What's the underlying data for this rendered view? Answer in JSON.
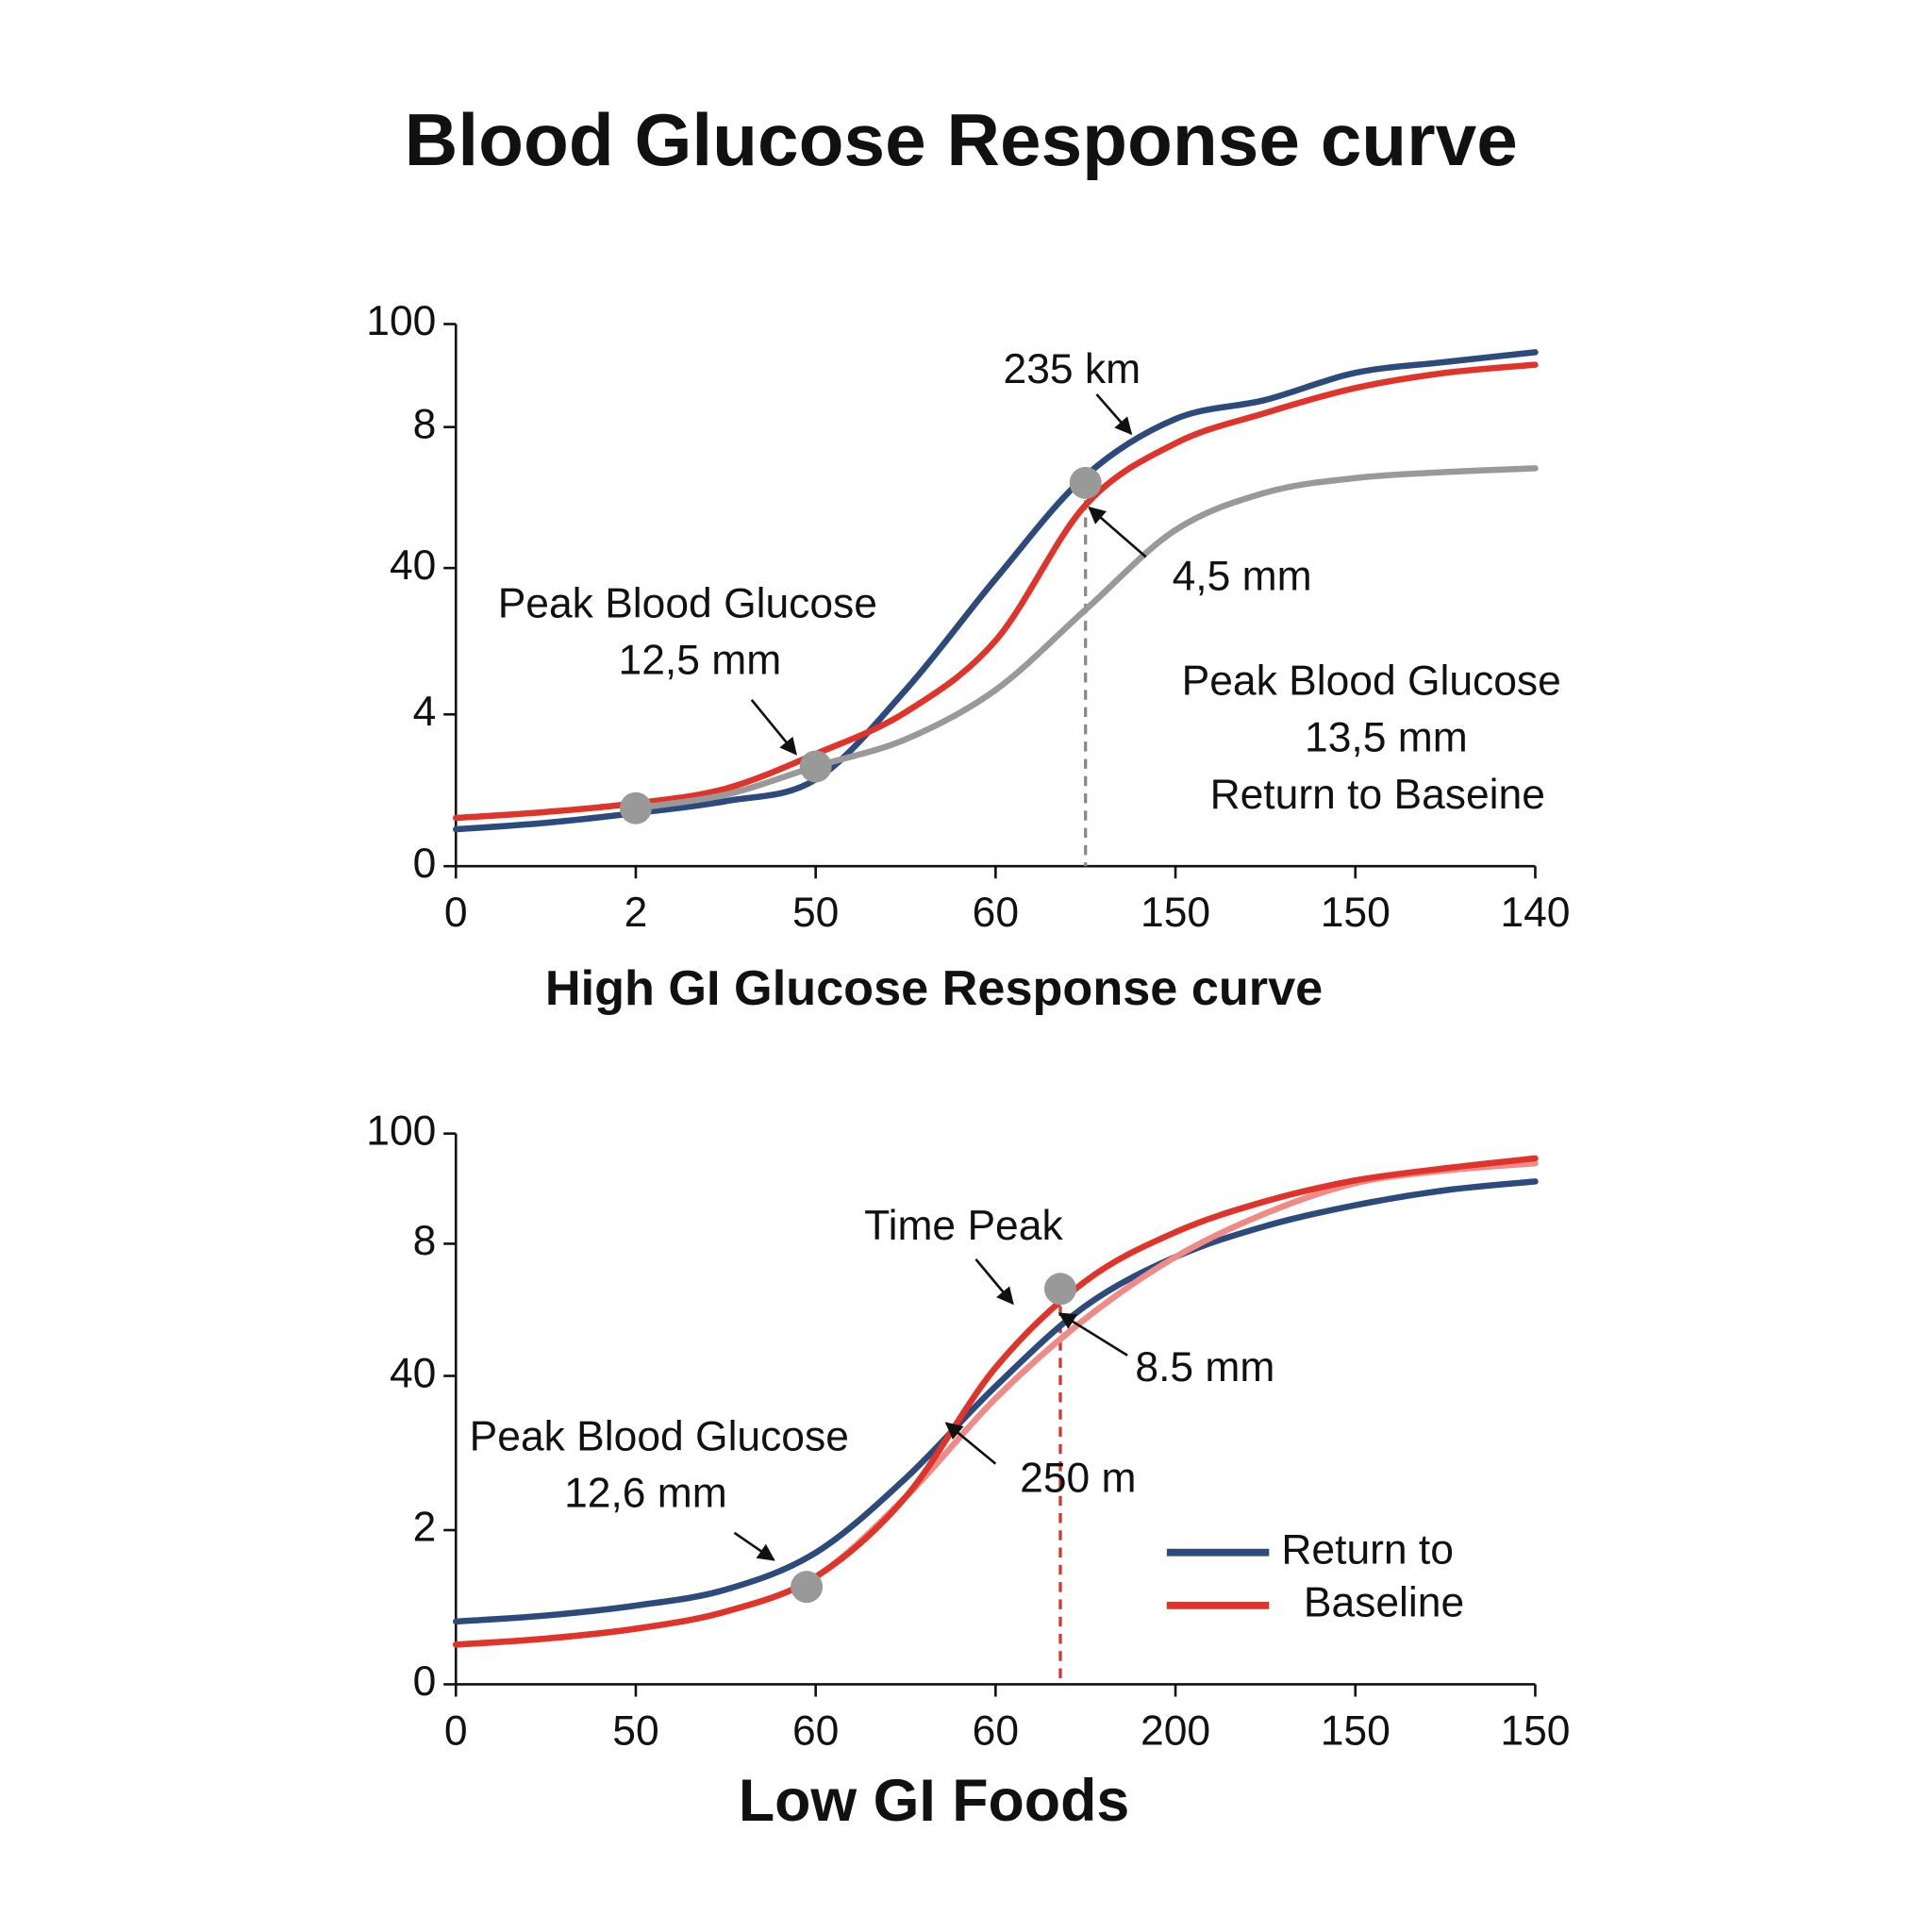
{
  "title": "Blood Glucose Response curve",
  "chart_data": [
    {
      "type": "line",
      "x_label": "High GI Glucose Response curve",
      "x": [
        0,
        0.5,
        1,
        1.5,
        2,
        2.5,
        3,
        3.5,
        4,
        4.5,
        5,
        5.5,
        6
      ],
      "xlim": [
        0,
        6
      ],
      "xticks": [
        0,
        {
          "value": 1,
          "label": "2"
        },
        {
          "value": 2,
          "label": "50"
        },
        {
          "value": 3,
          "label": "60"
        },
        {
          "value": 4,
          "label": "150"
        },
        {
          "value": 5,
          "label": "150"
        },
        {
          "value": 6,
          "label": "140"
        }
      ],
      "ylim": [
        0,
        100
      ],
      "yticks": [
        0,
        {
          "value": 28,
          "label": "4"
        },
        {
          "value": 55,
          "label": "40"
        },
        {
          "value": 81,
          "label": "8"
        },
        100
      ],
      "series": [
        {
          "color": "#2c4a7c",
          "values": [
            6.8,
            8,
            9.8,
            12,
            16,
            32.5,
            53,
            72,
            82.5,
            86,
            91,
            93,
            94.8
          ]
        },
        {
          "color": "#e0342a",
          "values": [
            8.9,
            10,
            11.6,
            14.3,
            20.7,
            28.4,
            41.6,
            66.6,
            78,
            83.6,
            88.2,
            91,
            92.5
          ]
        },
        {
          "color": "#999999",
          "values": [
            null,
            null,
            10.7,
            13.2,
            18.4,
            23.4,
            32.5,
            47.3,
            62,
            68.9,
            71.6,
            72.7,
            73.4
          ]
        }
      ],
      "markers": {
        "color": "#999999",
        "x": [
          1,
          2,
          3.5
        ],
        "y": [
          10.7,
          18.4,
          70.7
        ]
      },
      "vline": 3.5,
      "vline_color": "#888888",
      "annotations": [
        [
          "235 km"
        ],
        [
          "Peak Blood Glucose",
          "12,5 mm"
        ],
        [
          "4,5 mm"
        ],
        [
          "Peak Blood Glucose",
          "13,5 mm",
          "Return to Baseine"
        ]
      ],
      "legend": false
    },
    {
      "type": "line",
      "x_label": "Low GI Foods",
      "x": [
        0,
        0.5,
        1,
        1.5,
        2,
        2.5,
        3,
        3.5,
        4,
        4.5,
        5,
        5.5,
        6
      ],
      "xlim": [
        0,
        6
      ],
      "xticks": [
        0,
        {
          "value": 1,
          "label": "50"
        },
        {
          "value": 2,
          "label": "60"
        },
        {
          "value": 3,
          "label": "60"
        },
        {
          "value": 4,
          "label": "200"
        },
        {
          "value": 5,
          "label": "150"
        },
        {
          "value": 6,
          "label": "150"
        }
      ],
      "ylim": [
        0,
        100
      ],
      "yticks": [
        0,
        {
          "value": 28,
          "label": "2"
        },
        {
          "value": 56,
          "label": "40"
        },
        {
          "value": 80,
          "label": "8"
        },
        100
      ],
      "series": [
        {
          "name": "Return to",
          "color": "#2c4a7c",
          "values": [
            11.4,
            12.5,
            14.3,
            17.2,
            23.9,
            37.4,
            54.1,
            68.7,
            77.6,
            83.2,
            87,
            89.7,
            91.3
          ]
        },
        {
          "color": "#f08a86",
          "values": [
            7.2,
            8.3,
            10.1,
            13.2,
            19.5,
            34,
            51.9,
            66.4,
            77.6,
            85.5,
            91,
            93.3,
            94.6
          ]
        },
        {
          "name": "Baseline",
          "color": "#e0342a",
          "values": [
            7.2,
            8.3,
            10.1,
            13.2,
            19.5,
            34,
            57.5,
            73.2,
            82.1,
            87.7,
            91.5,
            93.7,
            95.5
          ]
        }
      ],
      "markers": {
        "color": "#999999",
        "x": [
          1.95,
          3.36
        ],
        "y": [
          17.7,
          71.8
        ]
      },
      "vline": 3.36,
      "vline_color": "#d9332b",
      "annotations": [
        [
          "Time Peak"
        ],
        [
          "8.5 mm"
        ],
        [
          "Peak Blood Glucose",
          "12,6 mm"
        ],
        [
          "250 m"
        ]
      ],
      "legend": true
    }
  ]
}
